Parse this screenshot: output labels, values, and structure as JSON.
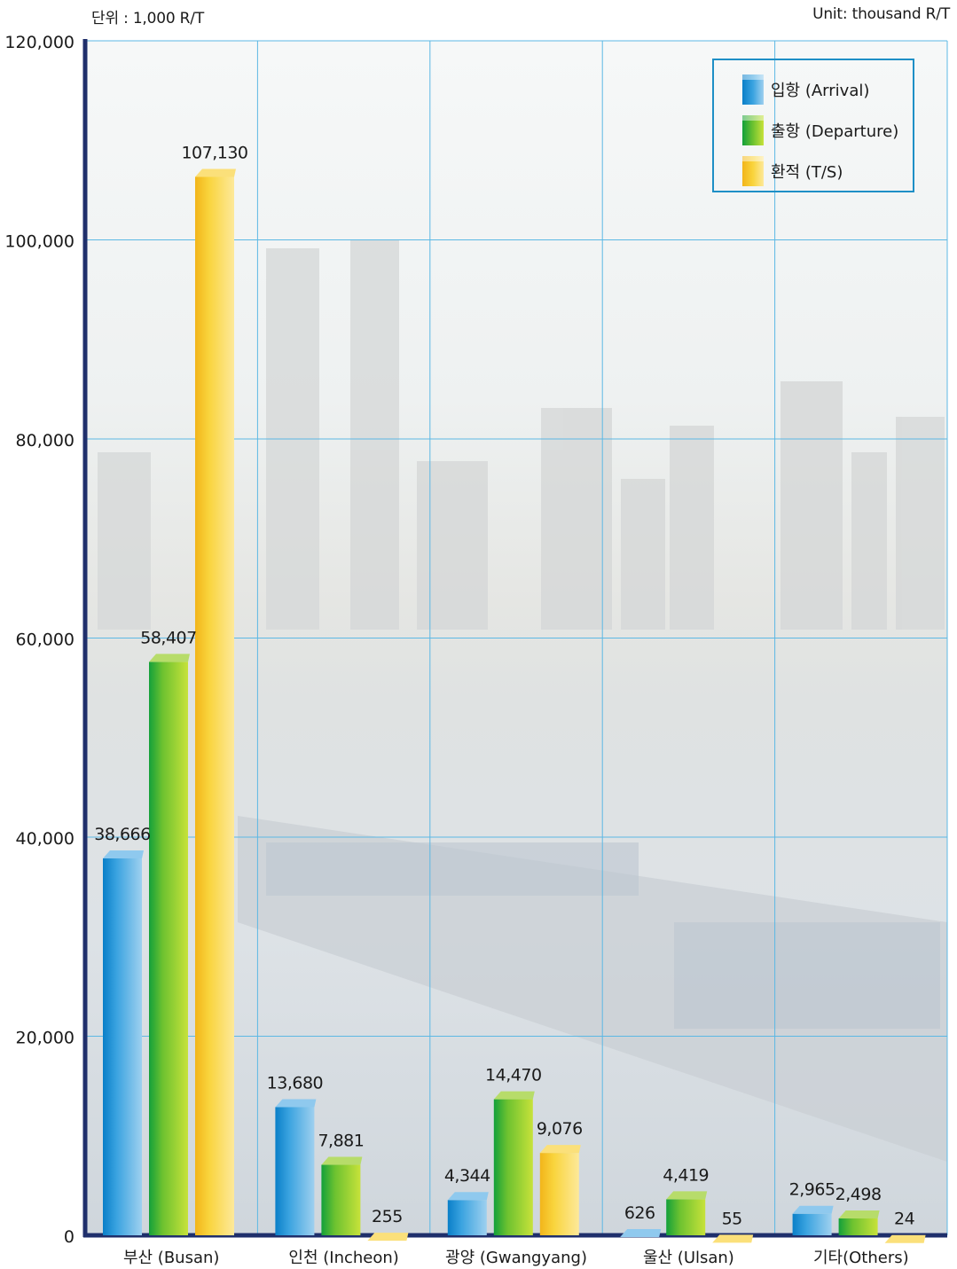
{
  "header": {
    "unit_korean": "단위 : 1,000 R/T",
    "unit_english": "Unit: thousand R/T"
  },
  "legend": {
    "items": [
      {
        "label": "입항 (Arrival)",
        "color": "#2a9ad8"
      },
      {
        "label": "출항 (Departure)",
        "color": "#7cc82a"
      },
      {
        "label": "환적 (T/S)",
        "color": "#f6c81e"
      }
    ]
  },
  "chart_data": {
    "type": "bar",
    "categories": [
      "부산 (Busan)",
      "인천 (Incheon)",
      "광양 (Gwangyang)",
      "울산 (Ulsan)",
      "기타(Others)"
    ],
    "series": [
      {
        "name": "입항 (Arrival)",
        "values": [
          38666,
          13680,
          4344,
          626,
          2965
        ],
        "labels": [
          "38,666",
          "13,680",
          "4,344",
          "626",
          "2,965"
        ],
        "color": "#2a9ad8"
      },
      {
        "name": "출항 (Departure)",
        "values": [
          58407,
          7881,
          14470,
          4419,
          2498
        ],
        "labels": [
          "58,407",
          "7,881",
          "14,470",
          "4,419",
          "2,498"
        ],
        "color": "#7cc82a"
      },
      {
        "name": "환적 (T/S)",
        "values": [
          107130,
          255,
          9076,
          55,
          24
        ],
        "labels": [
          "107,130",
          "255",
          "9,076",
          "55",
          "24"
        ],
        "color": "#f6c81e"
      }
    ],
    "ylim": [
      0,
      120000
    ],
    "yticks": [
      0,
      20000,
      40000,
      60000,
      80000,
      100000,
      120000
    ],
    "ytick_labels": [
      "0",
      "20,000",
      "40,000",
      "60,000",
      "80,000",
      "100,000",
      "120,000"
    ],
    "grid": true,
    "legend_position": "top-right",
    "background": "photo of container ship and city skyline"
  }
}
